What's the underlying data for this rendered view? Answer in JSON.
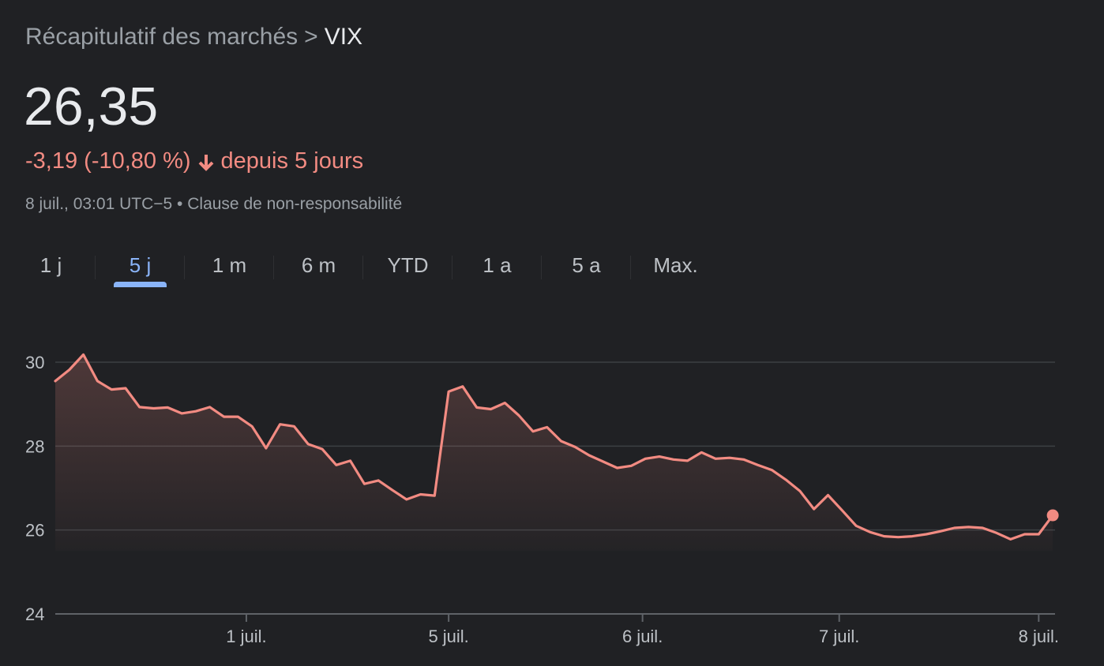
{
  "breadcrumb": {
    "parent": "Récapitulatif des marchés",
    "separator": ">",
    "current": "VIX"
  },
  "price": "26,35",
  "change": {
    "value": "-3,19 (-10,80 %)",
    "period": "depuis 5 jours",
    "direction_icon": "arrow-down-icon",
    "color": "#f28b82"
  },
  "meta": {
    "timestamp": "8 juil., 03:01 UTC−5",
    "bullet": "•",
    "disclaimer": "Clause de non-responsabilité"
  },
  "tabs": [
    {
      "label": "1 j",
      "active": false
    },
    {
      "label": "5 j",
      "active": true
    },
    {
      "label": "1 m",
      "active": false
    },
    {
      "label": "6 m",
      "active": false
    },
    {
      "label": "YTD",
      "active": false
    },
    {
      "label": "1 a",
      "active": false
    },
    {
      "label": "5 a",
      "active": false
    },
    {
      "label": "Max.",
      "active": false
    }
  ],
  "colors": {
    "background": "#202124",
    "line": "#f28b82",
    "accent_tab": "#8ab4f8",
    "gridline": "#3c4043"
  },
  "chart_data": {
    "type": "area",
    "ylim": [
      24,
      30
    ],
    "yticks": [
      {
        "value": 30,
        "label": "30"
      },
      {
        "value": 28,
        "label": "28"
      },
      {
        "value": 26,
        "label": "26"
      },
      {
        "value": 24,
        "label": "24"
      }
    ],
    "xlim": [
      0,
      70.6
    ],
    "xticks": [
      {
        "value": 13.6,
        "label": "1 juil."
      },
      {
        "value": 28,
        "label": "5 juil."
      },
      {
        "value": 41.8,
        "label": "6 juil."
      },
      {
        "value": 55.8,
        "label": "7 juil."
      },
      {
        "value": 70.0,
        "label": "8 juil."
      }
    ],
    "grid": true,
    "series": [
      {
        "values": [
          29.55,
          29.82,
          30.18,
          29.55,
          29.35,
          29.38,
          28.93,
          28.9,
          28.92,
          28.78,
          28.83,
          28.93,
          28.7,
          28.7,
          28.47,
          27.95,
          28.52,
          28.47,
          28.05,
          27.93,
          27.55,
          27.65,
          27.1,
          27.18,
          26.95,
          26.73,
          26.85,
          26.82,
          29.3,
          29.42,
          28.92,
          28.88,
          29.03,
          28.73,
          28.35,
          28.45,
          28.12,
          27.98,
          27.78,
          27.63,
          27.48,
          27.53,
          27.7,
          27.75,
          27.68,
          27.65,
          27.85,
          27.7,
          27.72,
          27.68,
          27.55,
          27.43,
          27.2,
          26.93,
          26.5,
          26.83,
          26.47,
          26.1,
          25.95,
          25.85,
          25.83,
          25.85,
          25.9,
          25.97,
          26.05,
          26.07,
          26.05,
          25.93,
          25.78,
          25.9,
          25.9,
          26.35
        ]
      }
    ],
    "last_point": 26.35
  }
}
